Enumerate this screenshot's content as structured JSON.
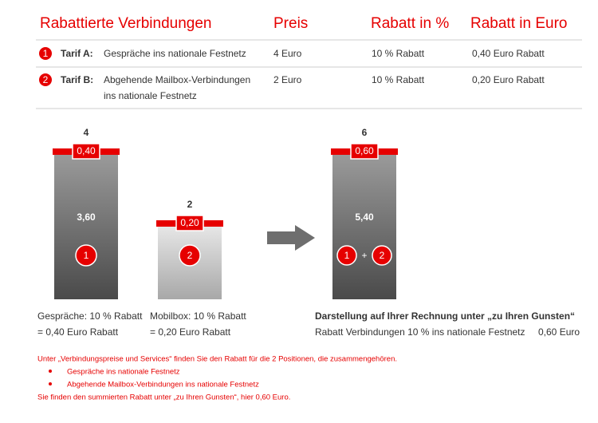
{
  "table": {
    "headers": [
      "Rabattierte Verbindungen",
      "Preis",
      "Rabatt in %",
      "Rabatt in Euro"
    ],
    "rows": [
      {
        "marker": "1",
        "tarif": "Tarif A:",
        "description": [
          "Gespräche ins nationale Festnetz"
        ],
        "price": "4 Euro",
        "percent": "10 % Rabatt",
        "euro": "0,40 Euro Rabatt"
      },
      {
        "marker": "2",
        "tarif": "Tarif B:",
        "description": [
          "Abgehende Mailbox-Verbindungen",
          "ins nationale Festnetz"
        ],
        "price": "2 Euro",
        "percent": "10 % Rabatt",
        "euro": "0,20 Euro Rabatt"
      }
    ]
  },
  "bars": [
    {
      "total": "4",
      "discount": "0,40",
      "net": "3,60",
      "marker": "1",
      "caption": [
        "Gespräche: 10 % Rabatt",
        "= 0,40 Euro Rabatt"
      ]
    },
    {
      "total": "2",
      "discount": "0,20",
      "marker": "2",
      "caption": [
        "Mobilbox: 10 % Rabatt",
        "= 0,20 Euro Rabatt"
      ]
    }
  ],
  "combined": {
    "total": "6",
    "discount": "0,60",
    "net": "5,40",
    "markers": [
      "1",
      "+",
      "2"
    ],
    "caption_title": "Darstellung auf Ihrer Rechnung unter „zu Ihren Gunsten“",
    "caption_text": "Rabatt Verbindungen 10 % ins nationale Festnetz",
    "caption_value": "0,60 Euro"
  },
  "notes": {
    "intro": "Unter „Verbindungspreise und Services“ finden Sie den Rabatt für die 2 Positionen, die zusammengehören.",
    "bullets": [
      "Gespräche ins nationale Festnetz",
      "Abgehende Mailbox-Verbindungen ins nationale Festnetz"
    ],
    "outro": "Sie finden den summierten Rabatt unter „zu Ihren Gunsten“, hier 0,60 Euro."
  }
}
